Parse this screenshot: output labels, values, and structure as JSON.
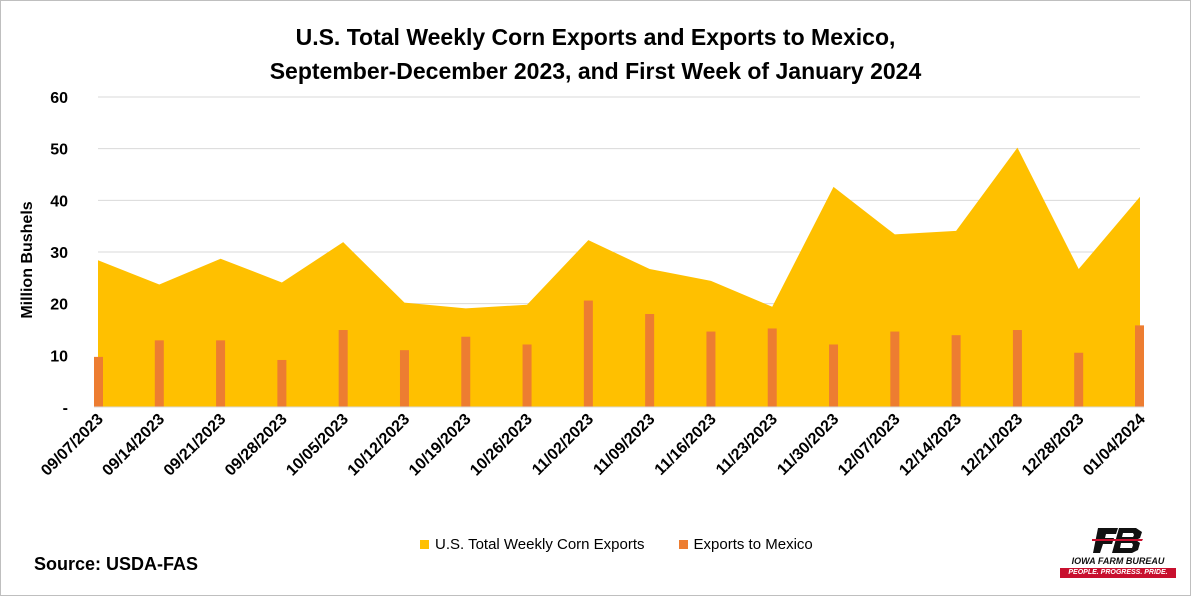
{
  "chart_data": {
    "type": "area",
    "title_lines": [
      "U.S. Total Weekly Corn Exports and Exports to Mexico,",
      "September-December 2023, and First Week of January 2024"
    ],
    "xlabel": "",
    "ylabel": "Million Bushels",
    "ylim": [
      0,
      60
    ],
    "yticks": [
      {
        "value": 0,
        "label": "-"
      },
      {
        "value": 10,
        "label": "10"
      },
      {
        "value": 20,
        "label": "20"
      },
      {
        "value": 30,
        "label": "30"
      },
      {
        "value": 40,
        "label": "40"
      },
      {
        "value": 50,
        "label": "50"
      },
      {
        "value": 60,
        "label": "60"
      }
    ],
    "grid": true,
    "legend_position": "bottom",
    "categories": [
      "09/07/2023",
      "09/14/2023",
      "09/21/2023",
      "09/28/2023",
      "10/05/2023",
      "10/12/2023",
      "10/19/2023",
      "10/26/2023",
      "11/02/2023",
      "11/09/2023",
      "11/16/2023",
      "11/23/2023",
      "11/30/2023",
      "12/07/2023",
      "12/14/2023",
      "12/21/2023",
      "12/28/2023",
      "01/04/2024"
    ],
    "series": [
      {
        "name": "U.S. Total Weekly Corn Exports",
        "type": "area",
        "color": "#ffc000",
        "values": [
          28.4,
          23.7,
          28.7,
          24.1,
          31.9,
          20.2,
          19.1,
          19.8,
          32.3,
          26.7,
          24.4,
          19.4,
          42.6,
          33.4,
          34.1,
          50.2,
          26.7,
          40.7
        ]
      },
      {
        "name": "Exports to Mexico",
        "type": "bar",
        "color": "#ed7d31",
        "values": [
          9.7,
          12.9,
          12.9,
          9.1,
          14.9,
          11.0,
          13.6,
          12.1,
          20.6,
          18.0,
          14.6,
          15.2,
          12.1,
          14.6,
          13.9,
          14.9,
          10.5,
          15.8
        ]
      }
    ]
  },
  "source": "Source: USDA-FAS",
  "logo": {
    "name": "IOWA FARM BUREAU",
    "tagline": "PEOPLE. PROGRESS. PRIDE.",
    "colors": {
      "mark": "#111111",
      "accent": "#c8102e"
    }
  }
}
